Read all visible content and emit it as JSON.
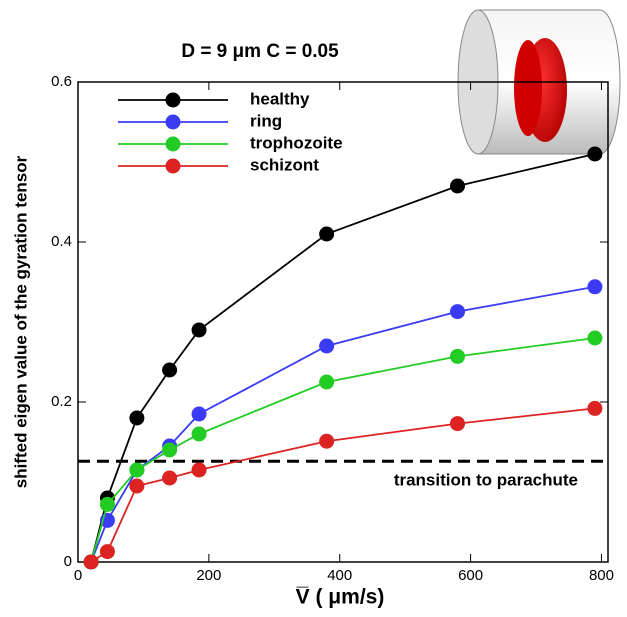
{
  "chart_data": {
    "type": "line",
    "title": "D = 9 μm     C = 0.05",
    "x_label": "V̅ ( μm/s)",
    "y_label": "shifted eigen value of the gyration tensor",
    "x": [
      20,
      45,
      90,
      140,
      185,
      380,
      580,
      790
    ],
    "series": [
      {
        "name": "healthy",
        "color": "#000000",
        "values": [
          0,
          0.08,
          0.18,
          0.24,
          0.29,
          0.41,
          0.47,
          0.51
        ]
      },
      {
        "name": "ring",
        "color": "#3b3bf5",
        "values": [
          0,
          0.052,
          0.115,
          0.145,
          0.185,
          0.27,
          0.313,
          0.344
        ]
      },
      {
        "name": "trophozoite",
        "color": "#22cc22",
        "values": [
          0,
          0.072,
          0.115,
          0.14,
          0.16,
          0.225,
          0.257,
          0.28
        ]
      },
      {
        "name": "schizont",
        "color": "#dd2222",
        "values": [
          0,
          0.013,
          0.095,
          0.105,
          0.115,
          0.151,
          0.173,
          0.192
        ]
      }
    ],
    "threshold": {
      "value": 0.126,
      "label": "transition to parachute"
    },
    "xlim": [
      0,
      810
    ],
    "ylim": [
      0,
      0.6
    ],
    "xticks": [
      0,
      200,
      400,
      600,
      800
    ],
    "yticks": [
      0,
      0.2,
      0.4,
      0.6
    ],
    "legend": "upper left"
  }
}
